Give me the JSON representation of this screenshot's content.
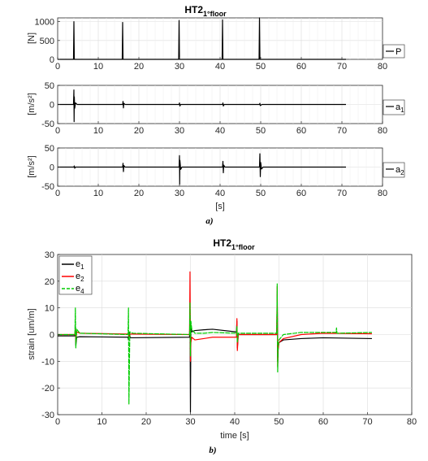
{
  "figure_a": {
    "title_main": "HT2",
    "title_sub": "1°floor",
    "caption": "a)",
    "xlabel": "[s]"
  },
  "figure_b": {
    "title_main": "HT2",
    "title_sub": "1°floor",
    "caption": "b)"
  },
  "chart_data": [
    {
      "type": "line",
      "title": "",
      "xlabel": "",
      "ylabel": "[N]",
      "xlim": [
        0,
        80
      ],
      "ylim": [
        0,
        1100
      ],
      "xticks": [
        0,
        10,
        20,
        30,
        40,
        50,
        60,
        70,
        80
      ],
      "yticks": [
        0,
        500,
        1000
      ],
      "grid": true,
      "legend": "right",
      "series": [
        {
          "name": "P",
          "color": "#000000",
          "x": [
            0,
            3.9,
            4.0,
            4.1,
            15.9,
            16.0,
            16.1,
            29.8,
            29.9,
            30.0,
            40.5,
            40.6,
            40.7,
            49.6,
            49.7,
            49.8,
            71
          ],
          "y": [
            0,
            0,
            1000,
            0,
            0,
            980,
            0,
            0,
            1030,
            0,
            0,
            1050,
            0,
            0,
            1100,
            0,
            0
          ]
        }
      ]
    },
    {
      "type": "line",
      "title": "",
      "xlabel": "",
      "ylabel": "[m/s²]",
      "xlim": [
        0,
        80
      ],
      "ylim": [
        -50,
        50
      ],
      "xticks": [
        0,
        10,
        20,
        30,
        40,
        50,
        60,
        70,
        80
      ],
      "yticks": [
        -50,
        0,
        50
      ],
      "grid": true,
      "legend": "right",
      "series": [
        {
          "name": "a",
          "name_sub": "1",
          "color": "#000000",
          "x": [
            0,
            3.9,
            4.0,
            4.05,
            4.1,
            4.2,
            4.4,
            4.8,
            16.0,
            16.1,
            16.2,
            16.3,
            16.6,
            29.9,
            30.0,
            30.1,
            30.3,
            40.6,
            40.7,
            40.8,
            41.0,
            49.7,
            49.8,
            49.9,
            50.3,
            71
          ],
          "y": [
            0,
            0,
            38,
            -45,
            20,
            -10,
            4,
            0,
            0,
            8,
            -9,
            3,
            0,
            0,
            4,
            -4,
            0,
            0,
            4,
            -4,
            0,
            0,
            3,
            -3,
            0,
            0
          ]
        }
      ]
    },
    {
      "type": "line",
      "title": "",
      "xlabel": "[s]",
      "ylabel": "[m/s²]",
      "xlim": [
        0,
        80
      ],
      "ylim": [
        -50,
        50
      ],
      "xticks": [
        0,
        10,
        20,
        30,
        40,
        50,
        60,
        70,
        80
      ],
      "yticks": [
        -50,
        0,
        50
      ],
      "grid": true,
      "legend": "right",
      "series": [
        {
          "name": "a",
          "name_sub": "2",
          "color": "#000000",
          "x": [
            0,
            4.0,
            4.1,
            4.2,
            4.4,
            16.0,
            16.1,
            16.2,
            16.3,
            16.6,
            29.9,
            30.0,
            30.05,
            30.1,
            30.3,
            30.6,
            40.6,
            40.7,
            40.8,
            40.9,
            41.2,
            49.7,
            49.8,
            49.9,
            50.0,
            50.2,
            50.6,
            71
          ],
          "y": [
            0,
            0,
            3,
            -3,
            0,
            0,
            10,
            -12,
            4,
            0,
            0,
            30,
            -45,
            18,
            -6,
            0,
            0,
            15,
            -15,
            5,
            0,
            0,
            35,
            -25,
            12,
            -5,
            0,
            0
          ]
        }
      ]
    },
    {
      "type": "line",
      "title": "",
      "xlabel": "time [s]",
      "ylabel": "strain [um/m]",
      "xlim": [
        0,
        80
      ],
      "ylim": [
        -30,
        30
      ],
      "xticks": [
        0,
        10,
        20,
        30,
        40,
        50,
        60,
        70,
        80
      ],
      "yticks": [
        -30,
        -20,
        -10,
        0,
        10,
        20,
        30
      ],
      "grid": true,
      "legend": "top-left",
      "series": [
        {
          "name": "e",
          "name_sub": "1",
          "color": "#000000",
          "x": [
            0,
            3.9,
            4.0,
            4.1,
            4.3,
            5,
            15.9,
            16.0,
            16.1,
            16.4,
            17,
            29.8,
            29.9,
            30.0,
            30.1,
            30.3,
            31,
            33,
            35,
            40.4,
            40.5,
            40.6,
            40.8,
            42,
            49.5,
            49.6,
            49.7,
            49.8,
            50,
            51,
            55,
            60,
            71
          ],
          "y": [
            -0.5,
            -0.5,
            3,
            -4,
            -1,
            -0.8,
            -1,
            -2,
            1,
            -1.2,
            -1.2,
            -1,
            8,
            -29,
            3,
            1,
            1.5,
            1.8,
            2,
            1,
            5,
            -5,
            0,
            0,
            0,
            15,
            -10,
            -5,
            -3,
            -2,
            -1.5,
            -1.2,
            -1.5
          ]
        },
        {
          "name": "e",
          "name_sub": "2",
          "color": "#ff0000",
          "x": [
            0,
            3.9,
            4.0,
            4.1,
            4.3,
            5,
            15.9,
            16.0,
            16.1,
            16.4,
            17,
            29.8,
            29.9,
            30.0,
            30.1,
            30.3,
            31,
            33,
            35,
            40.4,
            40.5,
            40.6,
            40.8,
            42,
            49.5,
            49.6,
            49.7,
            49.8,
            50,
            51,
            55,
            60,
            71
          ],
          "y": [
            0,
            0,
            2,
            -3,
            1,
            0.5,
            0.2,
            0.5,
            -0.8,
            0.2,
            0.2,
            0,
            23.5,
            -10,
            -3,
            -1,
            -2,
            -1.5,
            -1,
            -1,
            6,
            -6,
            0,
            0,
            0,
            18,
            -12,
            -6,
            -3,
            -1.5,
            0,
            0.5,
            0.3
          ]
        },
        {
          "name": "e",
          "name_sub": "4",
          "color": "#00cc00",
          "x": [
            0,
            3.9,
            4.0,
            4.1,
            4.3,
            5,
            15.9,
            16.0,
            16.1,
            16.3,
            17,
            29.8,
            29.9,
            30.0,
            30.1,
            30.3,
            31,
            33,
            35,
            40.4,
            40.5,
            40.6,
            40.8,
            42,
            49.5,
            49.6,
            49.7,
            49.8,
            50,
            51,
            55,
            62.9,
            63.0,
            63.1,
            71
          ],
          "y": [
            0,
            0,
            10,
            -5,
            2,
            0.5,
            0,
            10,
            -26,
            1,
            0.5,
            0,
            12,
            -8,
            5,
            2,
            0.5,
            0.5,
            0.8,
            0.5,
            3,
            -3,
            0.5,
            0.5,
            0.5,
            19,
            -14,
            -5,
            -2,
            0,
            0.8,
            0.8,
            2.5,
            0.5,
            0.8
          ]
        }
      ]
    }
  ]
}
